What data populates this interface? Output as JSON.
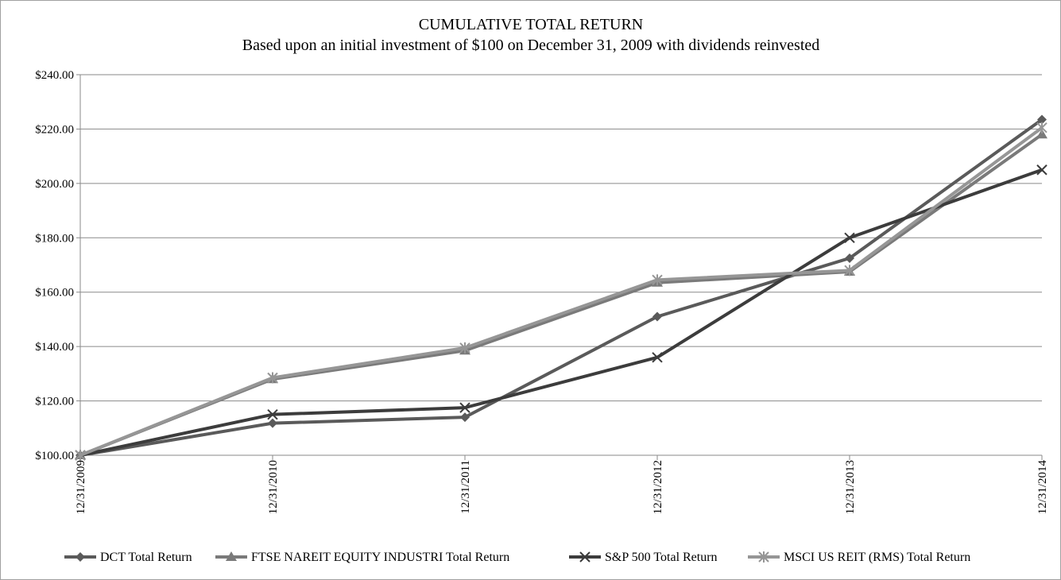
{
  "chart_data": {
    "type": "line",
    "title": "CUMULATIVE  TOTAL RETURN",
    "subtitle": "Based upon an initial investment of $100  on December 31, 2009 with dividends reinvested",
    "xlabel": "",
    "ylabel": "",
    "categories": [
      "12/31/2009",
      "12/31/2010",
      "12/31/2011",
      "12/31/2012",
      "12/31/2013",
      "12/31/2014"
    ],
    "y_ticks": [
      "$100.00",
      "$120.00",
      "$140.00",
      "$160.00",
      "$180.00",
      "$200.00",
      "$220.00",
      "$240.00"
    ],
    "ylim": [
      100,
      240
    ],
    "grid": true,
    "legend_position": "bottom",
    "series": [
      {
        "name": "DCT Total Return",
        "marker": "diamond",
        "color": "#5a5a5a",
        "values": [
          100.0,
          111.8,
          114.0,
          151.0,
          172.5,
          223.5
        ]
      },
      {
        "name": "FTSE NAREIT EQUITY INDUSTRI Total Return",
        "marker": "triangle",
        "color": "#7a7a7a",
        "values": [
          100.0,
          128.0,
          138.5,
          163.5,
          167.5,
          218.0
        ]
      },
      {
        "name": "S&P 500 Total Return",
        "marker": "x",
        "color": "#3c3c3c",
        "values": [
          100.0,
          115.0,
          117.5,
          136.0,
          180.0,
          205.0
        ]
      },
      {
        "name": "MSCI US REIT (RMS) Total Return",
        "marker": "star",
        "color": "#969696",
        "values": [
          100.0,
          128.5,
          139.5,
          164.5,
          168.0,
          220.5
        ]
      }
    ]
  }
}
